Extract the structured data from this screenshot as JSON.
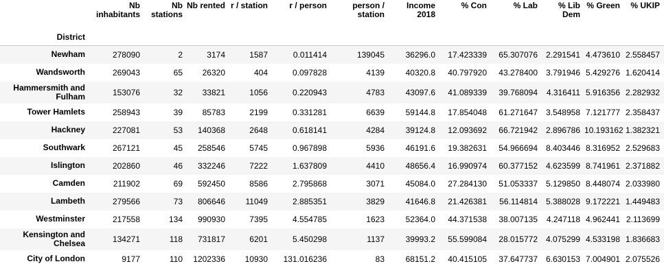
{
  "index_name": "District",
  "columns": [
    "Nb inhabitants",
    "Nb stations",
    "Nb rented",
    "r / station",
    "r / person",
    "person / station",
    "Income 2018",
    "% Con",
    "% Lab",
    "% Lib Dem",
    "% Green",
    "% UKIP"
  ],
  "rows": [
    {
      "district": "Newham",
      "cells": [
        "278090",
        "2",
        "3174",
        "1587",
        "0.011414",
        "139045",
        "36296.0",
        "17.423339",
        "65.307076",
        "2.291541",
        "4.473610",
        "2.558457"
      ]
    },
    {
      "district": "Wandsworth",
      "cells": [
        "269043",
        "65",
        "26320",
        "404",
        "0.097828",
        "4139",
        "40320.8",
        "40.797920",
        "43.278400",
        "3.791946",
        "5.429276",
        "1.620414"
      ]
    },
    {
      "district": "Hammersmith and Fulham",
      "cells": [
        "153076",
        "32",
        "33821",
        "1056",
        "0.220943",
        "4783",
        "43097.6",
        "41.089339",
        "39.768094",
        "4.316411",
        "5.916356",
        "2.282932"
      ]
    },
    {
      "district": "Tower Hamlets",
      "cells": [
        "258943",
        "39",
        "85783",
        "2199",
        "0.331281",
        "6639",
        "59144.8",
        "17.854048",
        "61.271647",
        "3.548958",
        "7.121777",
        "2.358437"
      ]
    },
    {
      "district": "Hackney",
      "cells": [
        "227081",
        "53",
        "140368",
        "2648",
        "0.618141",
        "4284",
        "39124.8",
        "12.093692",
        "66.721942",
        "2.896786",
        "10.193162",
        "1.382321"
      ]
    },
    {
      "district": "Southwark",
      "cells": [
        "267121",
        "45",
        "258546",
        "5745",
        "0.967898",
        "5936",
        "46191.6",
        "19.382631",
        "54.966694",
        "8.403446",
        "8.316952",
        "2.529683"
      ]
    },
    {
      "district": "Islington",
      "cells": [
        "202860",
        "46",
        "332246",
        "7222",
        "1.637809",
        "4410",
        "48656.4",
        "16.990974",
        "60.377152",
        "4.623599",
        "8.741961",
        "2.371882"
      ]
    },
    {
      "district": "Camden",
      "cells": [
        "211902",
        "69",
        "592450",
        "8586",
        "2.795868",
        "3071",
        "45084.0",
        "27.284130",
        "51.053337",
        "5.129850",
        "8.448074",
        "2.033980"
      ]
    },
    {
      "district": "Lambeth",
      "cells": [
        "279566",
        "73",
        "806646",
        "11049",
        "2.885351",
        "3829",
        "41646.8",
        "21.426381",
        "56.114814",
        "5.388028",
        "9.172221",
        "1.449483"
      ]
    },
    {
      "district": "Westminster",
      "cells": [
        "217558",
        "134",
        "990930",
        "7395",
        "4.554785",
        "1623",
        "52364.0",
        "44.371538",
        "38.007135",
        "4.247118",
        "4.962441",
        "2.113699"
      ]
    },
    {
      "district": "Kensington and Chelsea",
      "cells": [
        "134271",
        "118",
        "731817",
        "6201",
        "5.450298",
        "1137",
        "39993.2",
        "55.599084",
        "28.015772",
        "4.075299",
        "4.533198",
        "1.836683"
      ]
    },
    {
      "district": "City of London",
      "cells": [
        "9177",
        "110",
        "1202336",
        "10930",
        "131.016236",
        "83",
        "68151.2",
        "40.415105",
        "37.647737",
        "6.630153",
        "7.004901",
        "2.075526"
      ]
    }
  ]
}
